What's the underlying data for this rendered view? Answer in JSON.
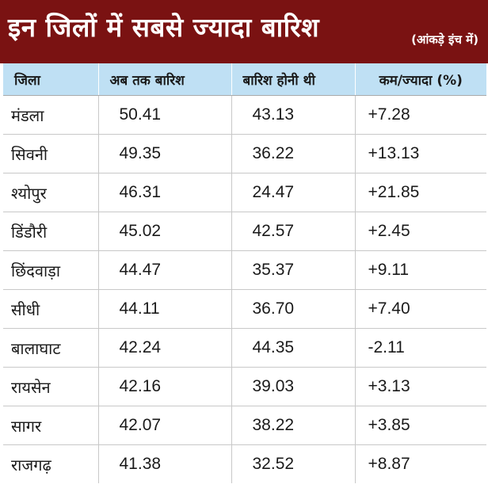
{
  "header": {
    "title": "इन जिलों में सबसे ज्यादा बारिश",
    "subtitle": "(आंकड़े इंच में)",
    "background_color": "#7a1212"
  },
  "table": {
    "header_color": "#bfe0f4",
    "columns": [
      "जिला",
      "अब तक बारिश",
      "बारिश होनी थी",
      "कम/ज्यादा (%)"
    ],
    "rows": [
      {
        "district": "मंडला",
        "actual": "50.41",
        "expected": "43.13",
        "diff": "+7.28"
      },
      {
        "district": "सिवनी",
        "actual": "49.35",
        "expected": "36.22",
        "diff": "+13.13"
      },
      {
        "district": "श्योपुर",
        "actual": "46.31",
        "expected": "24.47",
        "diff": "+21.85"
      },
      {
        "district": "डिंडौरी",
        "actual": "45.02",
        "expected": "42.57",
        "diff": "+2.45"
      },
      {
        "district": "छिंदवाड़ा",
        "actual": "44.47",
        "expected": "35.37",
        "diff": "+9.11"
      },
      {
        "district": "सीधी",
        "actual": "44.11",
        "expected": "36.70",
        "diff": "+7.40"
      },
      {
        "district": "बालाघाट",
        "actual": "42.24",
        "expected": "44.35",
        "diff": "-2.11"
      },
      {
        "district": "रायसेन",
        "actual": "42.16",
        "expected": "39.03",
        "diff": "+3.13"
      },
      {
        "district": "सागर",
        "actual": "42.07",
        "expected": "38.22",
        "diff": "+3.85"
      },
      {
        "district": "राजगढ़",
        "actual": "41.38",
        "expected": "32.52",
        "diff": "+8.87"
      }
    ]
  }
}
